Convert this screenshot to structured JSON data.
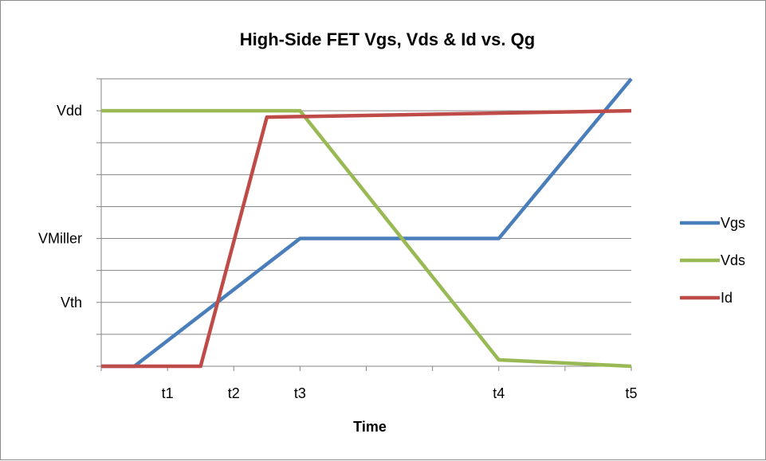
{
  "chart_data": {
    "type": "line",
    "title": "High-Side FET Vgs, Vds & Id vs. Qg",
    "xlabel": "Time",
    "ylabel": "",
    "x_ticks": [
      "t1",
      "t2",
      "t3",
      "t4",
      "t5"
    ],
    "x_tick_positions": [
      1,
      2,
      3,
      6,
      8
    ],
    "xlim": [
      0,
      8.0
    ],
    "ylim": [
      0,
      9
    ],
    "y_gridlines": [
      0,
      1,
      2,
      3,
      4,
      5,
      6,
      7,
      8,
      9
    ],
    "y_labels": [
      {
        "value": 2,
        "label": "Vth"
      },
      {
        "value": 4,
        "label": "VMiller"
      },
      {
        "value": 8,
        "label": "Vdd"
      }
    ],
    "grid": true,
    "legend_position": "right",
    "series": [
      {
        "name": "Vgs",
        "color": "#4a7ebb",
        "points": [
          [
            0,
            0
          ],
          [
            0.5,
            0
          ],
          [
            3,
            4
          ],
          [
            6,
            4
          ],
          [
            8,
            9
          ]
        ]
      },
      {
        "name": "Vds",
        "color": "#98b954",
        "points": [
          [
            0,
            8
          ],
          [
            3,
            8
          ],
          [
            6,
            0.2
          ],
          [
            8,
            0
          ]
        ]
      },
      {
        "name": "Id",
        "color": "#be4b48",
        "points": [
          [
            0,
            0
          ],
          [
            1.5,
            0
          ],
          [
            2.5,
            7.8
          ],
          [
            8,
            8
          ]
        ]
      }
    ]
  }
}
